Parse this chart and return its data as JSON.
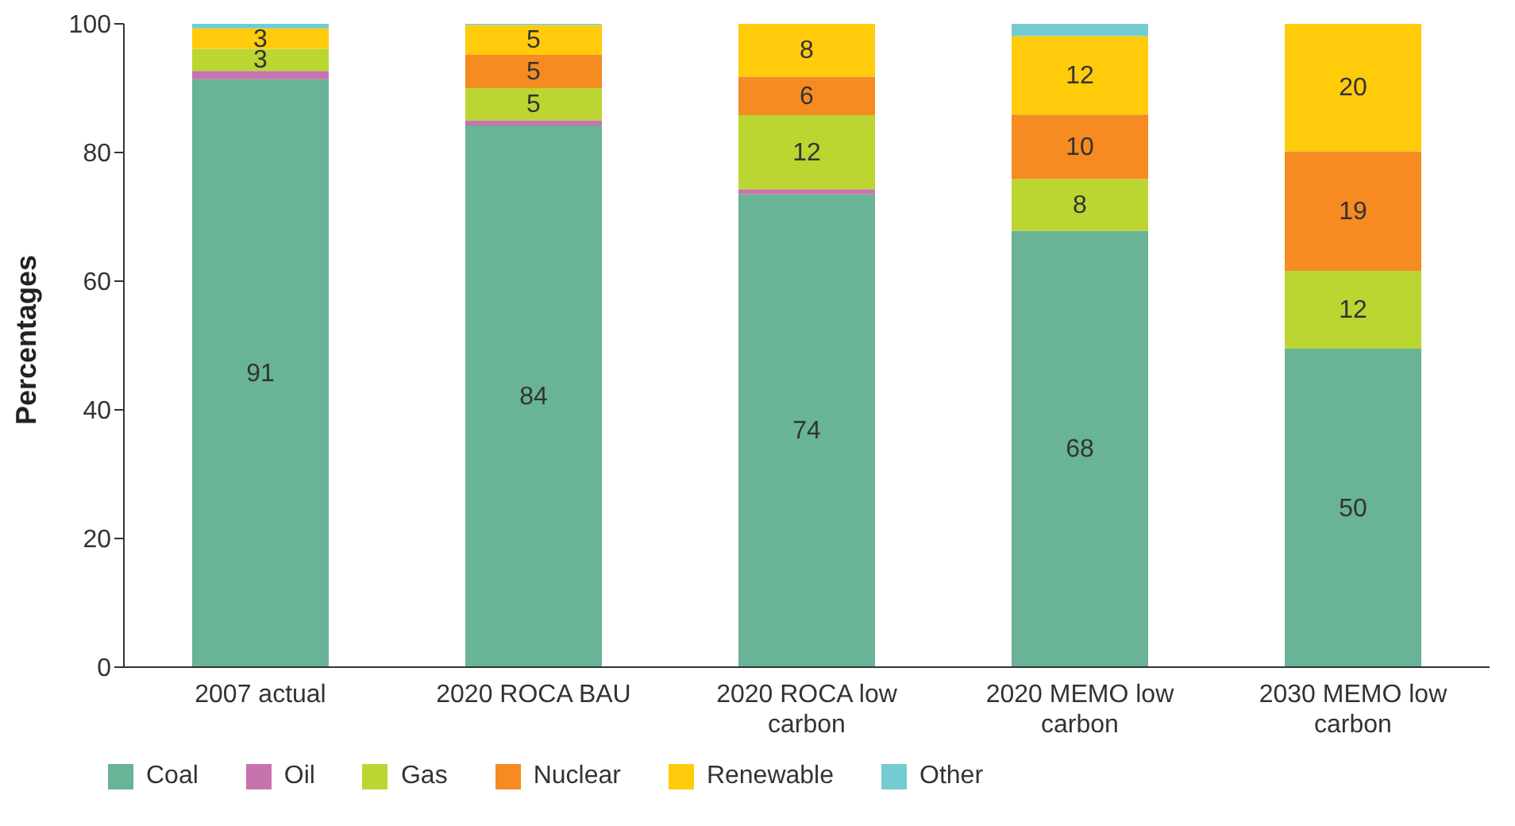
{
  "chart_data": {
    "type": "bar",
    "stacked": true,
    "ylabel": "Percentages",
    "categories": [
      "2007 actual",
      "2020 ROCA BAU",
      "2020 ROCA low carbon",
      "2020 MEMO low carbon",
      "2030 MEMO low carbon"
    ],
    "series": [
      {
        "name": "Coal",
        "color": "#69b396",
        "values": [
          91.4,
          84.2,
          73.5,
          67.8,
          49.5
        ],
        "value_labels": [
          "91",
          "84",
          "74",
          "68",
          "50"
        ]
      },
      {
        "name": "Oil",
        "color": "#c774ae",
        "values": [
          1.3,
          0.8,
          0.8,
          0,
          0
        ],
        "value_labels": [
          null,
          null,
          null,
          null,
          null
        ]
      },
      {
        "name": "Gas",
        "color": "#bcd631",
        "values": [
          3.4,
          5,
          11.5,
          8.1,
          12.1
        ],
        "value_labels": [
          "3",
          "5",
          "12",
          "8",
          "12"
        ]
      },
      {
        "name": "Nuclear",
        "color": "#f58b21",
        "values": [
          0,
          5.2,
          6,
          10,
          18.6
        ],
        "value_labels": [
          null,
          "5",
          "6",
          "10",
          "19"
        ]
      },
      {
        "name": "Renewable",
        "color": "#ffcb0b",
        "values": [
          3.2,
          4.6,
          8.2,
          12.2,
          19.8
        ],
        "value_labels": [
          "3",
          "5",
          "8",
          "12",
          "20"
        ]
      },
      {
        "name": "Other",
        "color": "#74cbd0",
        "values": [
          0.7,
          0.2,
          0,
          1.9,
          0
        ],
        "value_labels": [
          null,
          null,
          null,
          null,
          null
        ]
      }
    ],
    "ylim": [
      0,
      100
    ],
    "yticks": [
      0,
      20,
      40,
      60,
      80,
      100
    ],
    "grid": false,
    "legend": "bottom"
  }
}
